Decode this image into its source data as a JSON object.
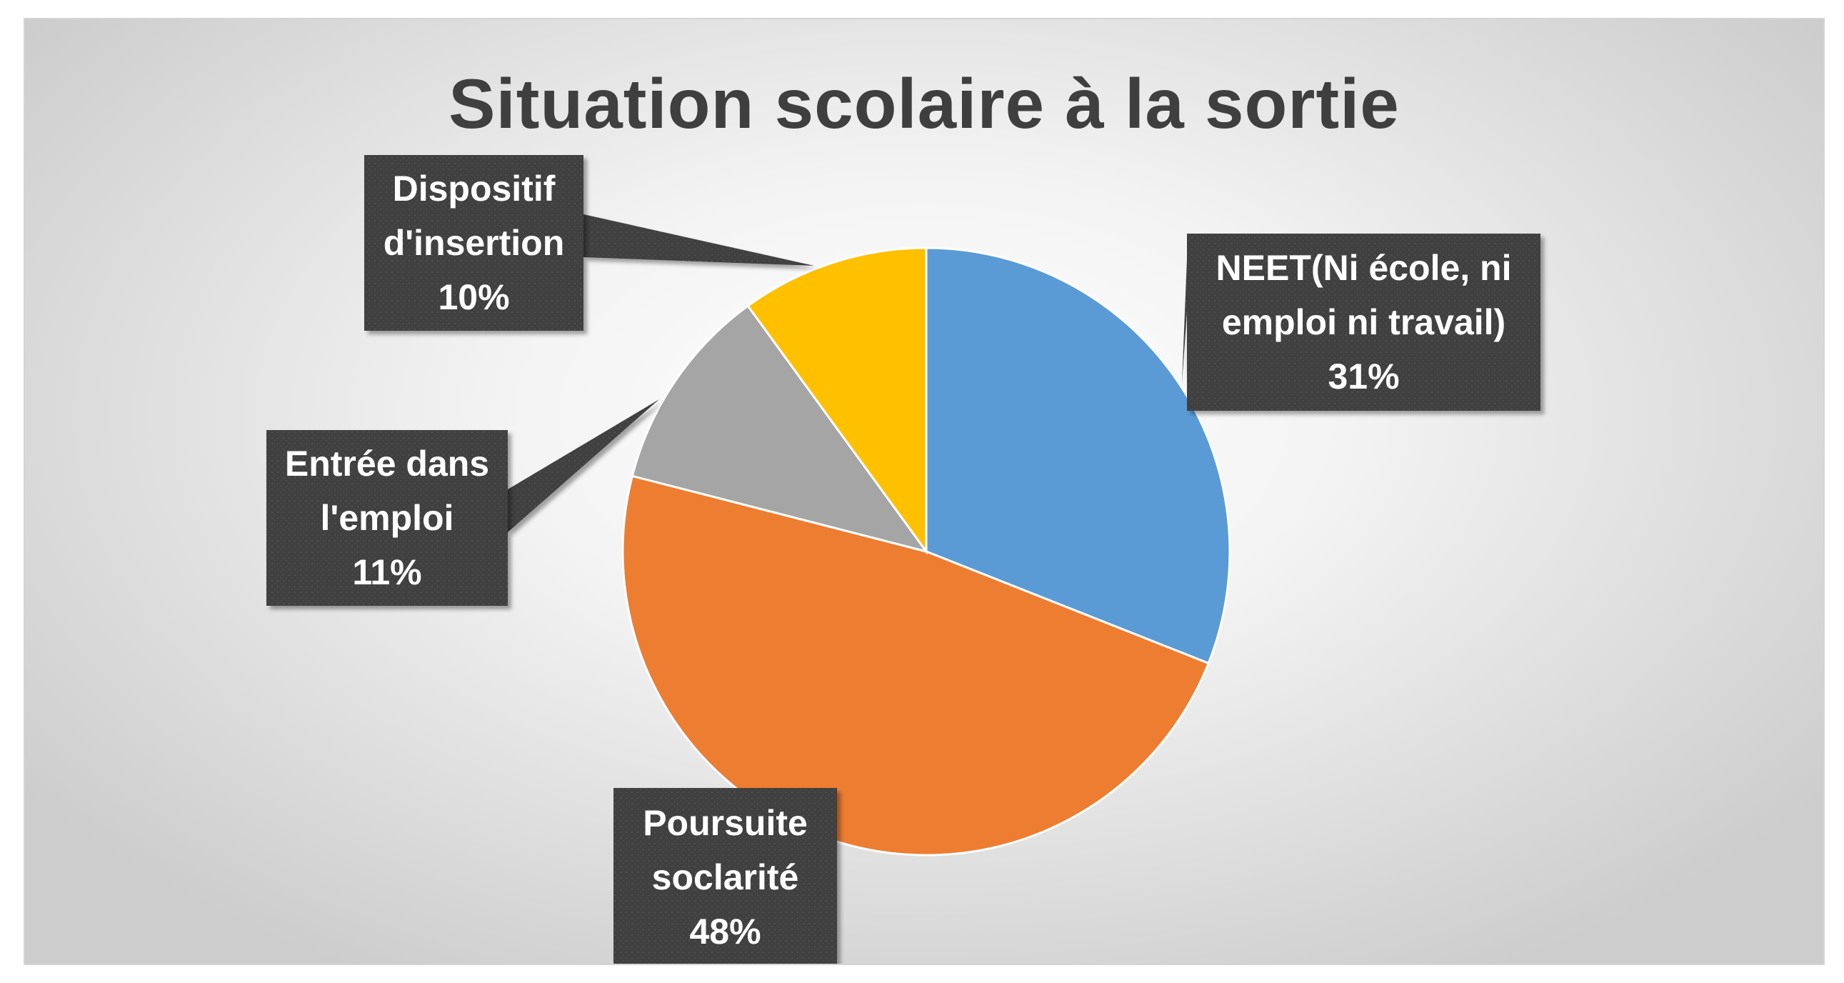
{
  "chart_data": {
    "type": "pie",
    "title": "Situation scolaire à la sortie",
    "start_angle_deg": 0,
    "direction": "clockwise",
    "slices": [
      {
        "label_lines": [
          "NEET(Ni école, ni",
          "emploi ni travail)"
        ],
        "percent_label": "31%",
        "value": 31,
        "color": "#5b9bd5"
      },
      {
        "label_lines": [
          "Poursuite",
          "soclarité"
        ],
        "percent_label": "48%",
        "value": 48,
        "color": "#ed7d31"
      },
      {
        "label_lines": [
          "Entrée dans",
          "l'emploi"
        ],
        "percent_label": "11%",
        "value": 11,
        "color": "#a5a5a5"
      },
      {
        "label_lines": [
          "Dispositif",
          "d'insertion"
        ],
        "percent_label": "10%",
        "value": 10,
        "color": "#ffc000"
      }
    ],
    "label_style": {
      "box_color": "#404040",
      "text_color": "#ffffff"
    }
  }
}
